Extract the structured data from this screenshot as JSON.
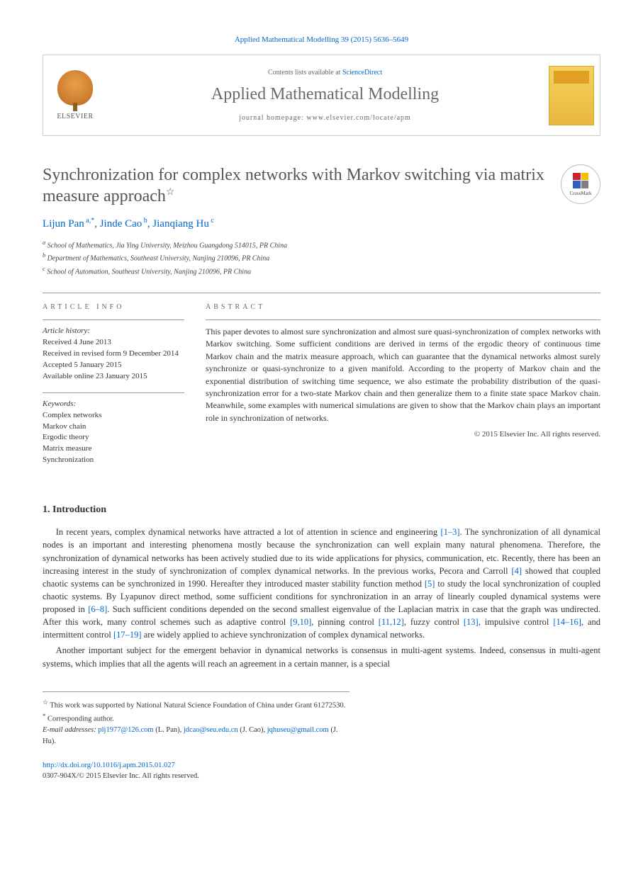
{
  "citation": "Applied Mathematical Modelling 39 (2015) 5636–5649",
  "header": {
    "contents_prefix": "Contents lists available at ",
    "contents_link": "ScienceDirect",
    "journal": "Applied Mathematical Modelling",
    "homepage_prefix": "journal homepage: ",
    "homepage_url": "www.elsevier.com/locate/apm",
    "publisher_logo_text": "ELSEVIER"
  },
  "crossmark_label": "CrossMark",
  "title": "Synchronization for complex networks with Markov switching via matrix measure approach",
  "title_note": "☆",
  "authors": [
    {
      "name": "Lijun Pan",
      "marks": "a,*"
    },
    {
      "name": "Jinde Cao",
      "marks": "b"
    },
    {
      "name": "Jianqiang Hu",
      "marks": "c"
    }
  ],
  "affiliations": [
    {
      "mark": "a",
      "text": "School of Mathematics, Jia Ying University, Meizhou Guangdong 514015, PR China"
    },
    {
      "mark": "b",
      "text": "Department of Mathematics, Southeast University, Nanjing 210096, PR China"
    },
    {
      "mark": "c",
      "text": "School of Automation, Southeast University, Nanjing 210096, PR China"
    }
  ],
  "article_info": {
    "label": "ARTICLE INFO",
    "history_label": "Article history:",
    "history": [
      "Received 4 June 2013",
      "Received in revised form 9 December 2014",
      "Accepted 5 January 2015",
      "Available online 23 January 2015"
    ],
    "keywords_label": "Keywords:",
    "keywords": [
      "Complex networks",
      "Markov chain",
      "Ergodic theory",
      "Matrix measure",
      "Synchronization"
    ]
  },
  "abstract": {
    "label": "ABSTRACT",
    "text": "This paper devotes to almost sure synchronization and almost sure quasi-synchronization of complex networks with Markov switching. Some sufficient conditions are derived in terms of the ergodic theory of continuous time Markov chain and the matrix measure approach, which can guarantee that the dynamical networks almost surely synchronize or quasi-synchronize to a given manifold. According to the property of Markov chain and the exponential distribution of switching time sequence, we also estimate the probability distribution of the quasi-synchronization error for a two-state Markov chain and then generalize them to a finite state space Markov chain. Meanwhile, some examples with numerical simulations are given to show that the Markov chain plays an important role in synchronization of networks.",
    "copyright": "© 2015 Elsevier Inc. All rights reserved."
  },
  "intro": {
    "heading": "1. Introduction",
    "p1_parts": [
      "In recent years, complex dynamical networks have attracted a lot of attention in science and engineering ",
      "[1–3]",
      ". The synchronization of all dynamical nodes is an important and interesting phenomena mostly because the synchronization can well explain many natural phenomena. Therefore, the synchronization of dynamical networks has been actively studied due to its wide applications for physics, communication, etc. Recently, there has been an increasing interest in the study of synchronization of complex dynamical networks. In the previous works, Pecora and Carroll ",
      "[4]",
      " showed that coupled chaotic systems can be synchronized in 1990. Hereafter they introduced master stability function method ",
      "[5]",
      " to study the local synchronization of coupled chaotic systems. By Lyapunov direct method, some sufficient conditions for synchronization in an array of linearly coupled dynamical systems were proposed in ",
      "[6–8]",
      ". Such sufficient conditions depended on the second smallest eigenvalue of the Laplacian matrix in case that the graph was undirected. After this work, many control schemes such as adaptive control ",
      "[9,10]",
      ", pinning control ",
      "[11,12]",
      ", fuzzy control ",
      "[13]",
      ", impulsive control ",
      "[14–16]",
      ", and intermittent control ",
      "[17–19]",
      " are widely applied to achieve synchronization of complex dynamical networks."
    ],
    "p2": "Another important subject for the emergent behavior in dynamical networks is consensus in multi-agent systems. Indeed, consensus in multi-agent systems, which implies that all the agents will reach an agreement in a certain manner, is a special"
  },
  "footnotes": {
    "funding_mark": "☆",
    "funding": "This work was supported by National Natural Science Foundation of China under Grant 61272530.",
    "corr_mark": "*",
    "corr": "Corresponding author.",
    "email_label": "E-mail addresses:",
    "emails": [
      {
        "addr": "plj1977@126.com",
        "who": "(L. Pan)"
      },
      {
        "addr": "jdcao@seu.edu.cn",
        "who": "(J. Cao)"
      },
      {
        "addr": "jqhuseu@gmail.com",
        "who": "(J. Hu)"
      }
    ]
  },
  "bottom": {
    "doi": "http://dx.doi.org/10.1016/j.apm.2015.01.027",
    "issn_line": "0307-904X/© 2015 Elsevier Inc. All rights reserved."
  }
}
